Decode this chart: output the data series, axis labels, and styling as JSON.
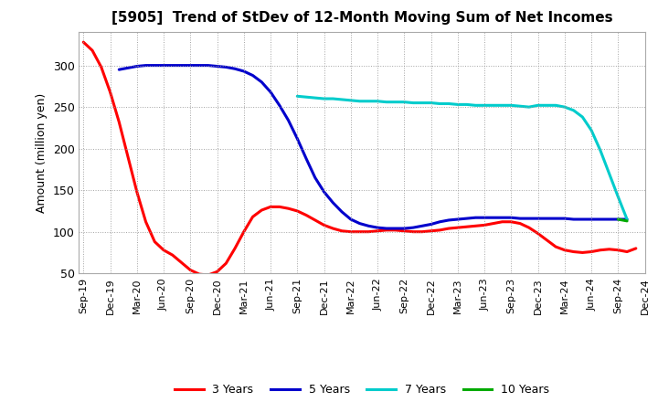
{
  "title": "[5905]  Trend of StDev of 12-Month Moving Sum of Net Incomes",
  "ylabel": "Amount (million yen)",
  "ylim": [
    50,
    340
  ],
  "yticks": [
    50,
    100,
    150,
    200,
    250,
    300
  ],
  "background_color": "#ffffff",
  "grid_color": "#aaaaaa",
  "series": {
    "3 Years": {
      "color": "#ff0000",
      "y": [
        328,
        318,
        298,
        268,
        232,
        190,
        148,
        112,
        88,
        78,
        72,
        63,
        54,
        49,
        48,
        52,
        62,
        80,
        100,
        118,
        126,
        130,
        130,
        128,
        125,
        120,
        114,
        108,
        104,
        101,
        100,
        100,
        100,
        101,
        102,
        102,
        101,
        100,
        100,
        101,
        102,
        104,
        105,
        106,
        107,
        108,
        110,
        112,
        112,
        110,
        105,
        98,
        90,
        82,
        78,
        76,
        75,
        76,
        78,
        79,
        78,
        76,
        80
      ]
    },
    "5 Years": {
      "color": "#0000cc",
      "y": [
        null,
        null,
        null,
        null,
        295,
        297,
        299,
        300,
        300,
        300,
        300,
        300,
        300,
        300,
        300,
        299,
        298,
        296,
        293,
        288,
        280,
        268,
        252,
        234,
        212,
        188,
        165,
        148,
        135,
        124,
        115,
        110,
        107,
        105,
        104,
        104,
        104,
        105,
        107,
        109,
        112,
        114,
        115,
        116,
        117,
        117,
        117,
        117,
        117,
        116,
        116,
        116,
        116,
        116,
        116,
        115,
        115,
        115,
        115,
        115,
        115,
        115,
        null
      ]
    },
    "7 Years": {
      "color": "#00cccc",
      "y": [
        null,
        null,
        null,
        null,
        null,
        null,
        null,
        null,
        null,
        null,
        null,
        null,
        null,
        null,
        null,
        null,
        null,
        null,
        null,
        null,
        null,
        null,
        null,
        null,
        263,
        262,
        261,
        260,
        260,
        259,
        258,
        257,
        257,
        257,
        256,
        256,
        256,
        255,
        255,
        255,
        254,
        254,
        253,
        253,
        252,
        252,
        252,
        252,
        252,
        251,
        250,
        252,
        252,
        252,
        250,
        246,
        238,
        222,
        198,
        170,
        142,
        115,
        null
      ]
    },
    "10 Years": {
      "color": "#00aa00",
      "y": [
        null,
        null,
        null,
        null,
        null,
        null,
        null,
        null,
        null,
        null,
        null,
        null,
        null,
        null,
        null,
        null,
        null,
        null,
        null,
        null,
        null,
        null,
        null,
        null,
        null,
        null,
        null,
        null,
        null,
        null,
        null,
        null,
        null,
        null,
        null,
        null,
        null,
        null,
        null,
        null,
        null,
        null,
        null,
        null,
        null,
        null,
        null,
        null,
        null,
        null,
        null,
        null,
        null,
        null,
        null,
        null,
        null,
        null,
        null,
        null,
        115,
        113,
        null
      ]
    }
  },
  "n_points": 63,
  "xtick_labels": [
    "Sep-19",
    "Dec-19",
    "Mar-20",
    "Jun-20",
    "Sep-20",
    "Dec-20",
    "Mar-21",
    "Jun-21",
    "Sep-21",
    "Dec-21",
    "Mar-22",
    "Jun-22",
    "Sep-22",
    "Dec-22",
    "Mar-23",
    "Jun-23",
    "Sep-23",
    "Dec-23",
    "Mar-24",
    "Jun-24",
    "Sep-24",
    "Dec-24"
  ],
  "xtick_positions": [
    0,
    3,
    6,
    9,
    12,
    15,
    18,
    21,
    24,
    27,
    30,
    33,
    36,
    39,
    42,
    45,
    48,
    51,
    54,
    57,
    60,
    63
  ],
  "linewidth": 2.2,
  "legend_labels": [
    "3 Years",
    "5 Years",
    "7 Years",
    "10 Years"
  ],
  "legend_colors": [
    "#ff0000",
    "#0000cc",
    "#00cccc",
    "#00aa00"
  ]
}
